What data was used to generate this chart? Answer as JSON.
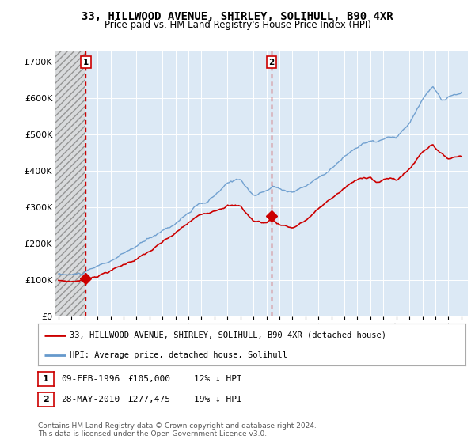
{
  "title": "33, HILLWOOD AVENUE, SHIRLEY, SOLIHULL, B90 4XR",
  "subtitle": "Price paid vs. HM Land Registry's House Price Index (HPI)",
  "legend_label_red": "33, HILLWOOD AVENUE, SHIRLEY, SOLIHULL, B90 4XR (detached house)",
  "legend_label_blue": "HPI: Average price, detached house, Solihull",
  "annotation1_date": "09-FEB-1996",
  "annotation1_price": "£105,000",
  "annotation1_hpi": "12% ↓ HPI",
  "annotation2_date": "28-MAY-2010",
  "annotation2_price": "£277,475",
  "annotation2_hpi": "19% ↓ HPI",
  "footnote": "Contains HM Land Registry data © Crown copyright and database right 2024.\nThis data is licensed under the Open Government Licence v3.0.",
  "marker1_x": 1996.1,
  "marker1_y": 105000,
  "marker2_x": 2010.4,
  "marker2_y": 277475,
  "vline1_x": 1996.1,
  "vline2_x": 2010.4,
  "hatch_end_x": 1996.0,
  "ylim": [
    0,
    730000
  ],
  "xlim_start": 1993.7,
  "xlim_end": 2025.5,
  "bg_color": "#dce9f5",
  "red_line_color": "#cc0000",
  "blue_line_color": "#6699cc",
  "grid_color": "#ffffff",
  "vline_color": "#cc0000",
  "yticks": [
    0,
    100000,
    200000,
    300000,
    400000,
    500000,
    600000,
    700000
  ],
  "ytick_labels": [
    "£0",
    "£100K",
    "£200K",
    "£300K",
    "£400K",
    "£500K",
    "£600K",
    "£700K"
  ],
  "xticks": [
    1994,
    1995,
    1996,
    1997,
    1998,
    1999,
    2000,
    2001,
    2002,
    2003,
    2004,
    2005,
    2006,
    2007,
    2008,
    2009,
    2010,
    2011,
    2012,
    2013,
    2014,
    2015,
    2016,
    2017,
    2018,
    2019,
    2020,
    2021,
    2022,
    2023,
    2024,
    2025
  ]
}
